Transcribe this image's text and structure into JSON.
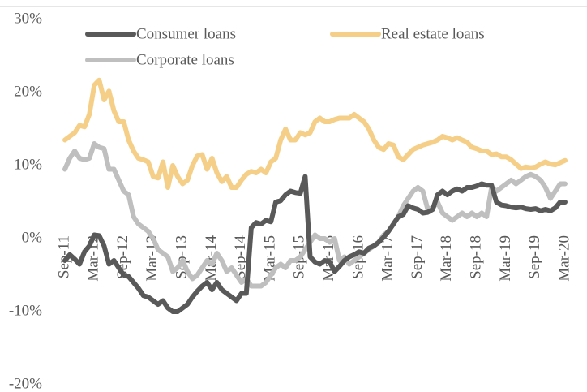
{
  "chart_data": {
    "type": "line",
    "categories": [
      "Sep-11",
      null,
      null,
      null,
      null,
      null,
      "Mar-12",
      null,
      null,
      null,
      null,
      null,
      "Sep-12",
      null,
      null,
      null,
      null,
      null,
      "Mar-13",
      null,
      null,
      null,
      null,
      null,
      "Sep-13",
      null,
      null,
      null,
      null,
      null,
      "Mar-14",
      null,
      null,
      null,
      null,
      null,
      "Sep-14",
      null,
      null,
      null,
      null,
      null,
      "Mar-15",
      null,
      null,
      null,
      null,
      null,
      "Sep-15",
      null,
      null,
      null,
      null,
      null,
      "Mar-16",
      null,
      null,
      null,
      null,
      null,
      "Sep-16",
      null,
      null,
      null,
      null,
      null,
      "Mar-17",
      null,
      null,
      null,
      null,
      null,
      "Sep-17",
      null,
      null,
      null,
      null,
      null,
      "Mar-18",
      null,
      null,
      null,
      null,
      null,
      "Sep-18",
      null,
      null,
      null,
      null,
      null,
      "Mar-19",
      null,
      null,
      null,
      null,
      null,
      "Sep-19",
      null,
      null,
      null,
      null,
      null,
      "Mar-20"
    ],
    "series": [
      {
        "name": "Consumer loans",
        "color": "#595959",
        "values": [
          -3,
          -2.2,
          -2.8,
          -3.5,
          -1.8,
          -1,
          0.5,
          0.4,
          -1,
          -3.5,
          -3,
          -4,
          -5,
          -5.2,
          -6,
          -6.8,
          -7.8,
          -8,
          -8.5,
          -9,
          -8.5,
          -9.5,
          -10,
          -10,
          -9.5,
          -9,
          -8,
          -7.2,
          -6.5,
          -6,
          -7,
          -6,
          -7,
          -7.5,
          -8,
          -8.5,
          -7.5,
          -7.5,
          1.5,
          2.2,
          2,
          2.5,
          2.3,
          5,
          5.2,
          6,
          6.5,
          6.3,
          6.2,
          8.5,
          -2.5,
          -3.2,
          -3.5,
          -3,
          -3.2,
          -4.5,
          -3.8,
          -3,
          -2.5,
          -2.2,
          -1.8,
          -2,
          -1.3,
          -1,
          -0.5,
          0.2,
          1,
          2,
          3,
          3.3,
          4.5,
          4.2,
          4,
          3.5,
          3.6,
          4,
          6,
          6.5,
          6,
          6.5,
          6.8,
          6.5,
          7,
          7,
          7.2,
          7.5,
          7.3,
          7.3,
          5,
          4.6,
          4.5,
          4.3,
          4.2,
          4.3,
          4.1,
          4,
          4.1,
          3.8,
          4,
          3.8,
          4.2,
          5,
          5
        ]
      },
      {
        "name": "Real estate loans",
        "color": "#f5cf87",
        "values": [
          13.5,
          14,
          14.5,
          15.5,
          15.3,
          17,
          21,
          21.7,
          19,
          20.2,
          17.5,
          16,
          16,
          13.5,
          12,
          11,
          10.8,
          10.5,
          8.5,
          8.3,
          10.5,
          7,
          10,
          8.5,
          7.5,
          8,
          10,
          11.3,
          11.5,
          9.5,
          11,
          9,
          7.8,
          8.5,
          7,
          7,
          8,
          8.8,
          9.2,
          9,
          9.5,
          9,
          10.5,
          11,
          13.5,
          15,
          13.5,
          13.5,
          14.5,
          14.2,
          14.5,
          16,
          16.5,
          16,
          16,
          16.3,
          16.5,
          16.5,
          16.5,
          17,
          16.5,
          16,
          15,
          13.5,
          12.5,
          12.2,
          13,
          12.8,
          11.2,
          10.8,
          11.5,
          12.2,
          12.5,
          12.8,
          13,
          13.2,
          13.5,
          14,
          13.8,
          13.5,
          13.8,
          13.5,
          13.2,
          12.5,
          12.3,
          12,
          12,
          11.5,
          11.6,
          11.2,
          11.2,
          10.8,
          10.2,
          9.6,
          9.8,
          9.7,
          9.8,
          10.2,
          10.5,
          10.2,
          10.1,
          10.4,
          10.7
        ]
      },
      {
        "name": "Corporate loans",
        "color": "#bfbfbf",
        "values": [
          9.5,
          11,
          12,
          11,
          10.8,
          11,
          13,
          12.5,
          12.3,
          9.5,
          9.5,
          8,
          6.5,
          6,
          3,
          2,
          1.5,
          1,
          0,
          -1.5,
          -2,
          -2.5,
          -4.5,
          -4,
          -3,
          -4.5,
          -5.5,
          -5,
          -4,
          -3,
          -3.5,
          -2,
          -3,
          -4.5,
          -4,
          -5,
          -6,
          -5.5,
          -6.5,
          -6.5,
          -6.5,
          -6,
          -5,
          -4,
          -3.5,
          -4,
          -3,
          -3,
          -2.5,
          -1.5,
          -0.5,
          0.5,
          0,
          0,
          -0.5,
          0,
          -3,
          -2.5,
          -3.5,
          -3,
          -2.5,
          -2,
          -1.5,
          -1,
          -0.5,
          0.5,
          1,
          2,
          3,
          4.5,
          5.5,
          6.5,
          7,
          6.5,
          4,
          4.2,
          5,
          3.5,
          3,
          2.5,
          3,
          3.5,
          3,
          3.5,
          3,
          3.5,
          3,
          7,
          6.5,
          7,
          7.5,
          8,
          7.5,
          8,
          8.5,
          8.8,
          8.5,
          8,
          7,
          5.5,
          6.5,
          7.5,
          7.5
        ]
      }
    ],
    "ylim": [
      -20,
      30
    ],
    "yticks": [
      {
        "value": -20,
        "label": "-20%"
      },
      {
        "value": -10,
        "label": "-10%"
      },
      {
        "value": 0,
        "label": "0%"
      },
      {
        "value": 10,
        "label": "10%"
      },
      {
        "value": 20,
        "label": "20%"
      },
      {
        "value": 30,
        "label": "30%"
      }
    ],
    "grid": false
  }
}
